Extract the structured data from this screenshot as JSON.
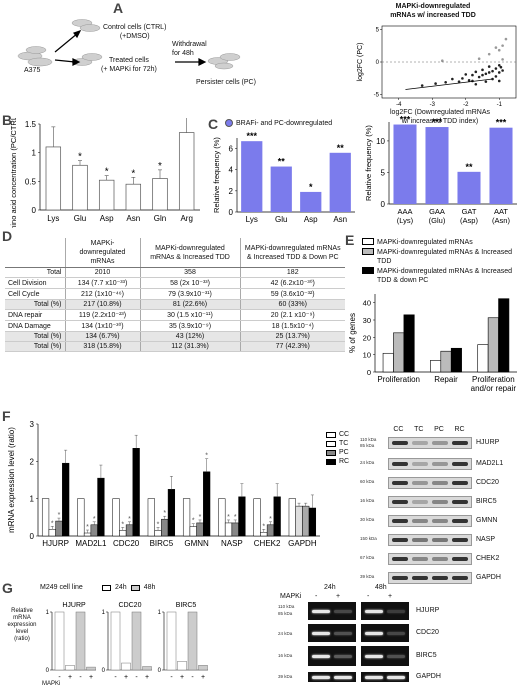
{
  "panel_labels": [
    "A",
    "B",
    "C",
    "D",
    "E",
    "F",
    "G"
  ],
  "panelA": {
    "start": "A375",
    "ctrl": [
      "Control cells (CTRL)",
      "(+DMSO)"
    ],
    "treated": [
      "Treated cells",
      "(+ MAPKi for 72h)"
    ],
    "withdraw": [
      "Withdrawal",
      "for 48h"
    ],
    "pc": "Persister cells (PC)",
    "scatter_title": [
      "MAPKi-downregulated",
      "mRNAs w/ increased TDD"
    ],
    "scatter_ylabel": "log2FC (PC)",
    "scatter_xlabel": [
      "log2FC (Downregulated mRNAs",
      "w/ increased TDD index)"
    ]
  },
  "panelC": {
    "legend": "BRAFi- and PC-downregulated",
    "color": "#7b7bec"
  },
  "panelD": {
    "headers": [
      "",
      "MAPKi-downregulated mRNAs",
      "MAPKi-downregulated mRNAs & Increased TDD",
      "MAPKi-downregulated mRNAs & Increased TDD & Down PC"
    ],
    "rows": [
      [
        "Total",
        "2010",
        "358",
        "182"
      ],
      [
        "Cell Division",
        "134 (7.7 x10⁻³³)",
        "58 (2x 10⁻³³)",
        "42 (6.2x10⁻³⁰)"
      ],
      [
        "Cell Cycle",
        "212 (1x10⁻⁴⁶)",
        "79 (3.9x10⁻³¹)",
        "59 (3.6x10⁻³²)"
      ],
      [
        "Total (%)",
        "217 (10.8%)",
        "81 (22.6%)",
        "60 (33%)"
      ],
      [
        "DNA repair",
        "119 (2.2x10⁻²³)",
        "30 (1.5 x10⁻¹¹)",
        "20 (2.1 x10⁻⁹)"
      ],
      [
        "DNA Damage",
        "134 (1x10⁻³⁰)",
        "35 (3.9x10⁻⁹)",
        "18 (1.5x10⁻⁴)"
      ],
      [
        "Total (%)",
        "134 (6.7%)",
        "43 (12%)",
        "25 (13.7%)"
      ],
      [
        "Total (%)",
        "318 (15.8%)",
        "112 (31.3%)",
        "77 (42.3%)"
      ]
    ]
  },
  "panelE": {
    "legend": [
      "MAPKi-downregulated mRNAs",
      "MAPKi-downregulated mRNAs & Increased TDD",
      "MAPKi-downregulated mRNAs & Increased TDD & down PC"
    ],
    "colors": [
      "#ffffff",
      "#bbbbbb",
      "#000000"
    ]
  },
  "panelF": {
    "legend": [
      "CC",
      "TC",
      "PC",
      "RC"
    ],
    "colors": [
      "#ffffff",
      "#ffffff",
      "#888888",
      "#000000"
    ],
    "blot_cols": [
      "CC",
      "TC",
      "PC",
      "RC"
    ],
    "blot_rows": [
      "HJURP",
      "MAD2L1",
      "CDC20",
      "BIRC5",
      "GMNN",
      "NASP",
      "CHEK2",
      "GAPDH"
    ],
    "blot_kda": [
      "110 kDa",
      "85 kDa",
      "24 kDa",
      "60 kDa",
      "16 kDa",
      "30 kDa",
      "150 kDa",
      "67 kDa",
      "39 kDa"
    ]
  },
  "panelG": {
    "cell_line": "M249 cell line",
    "legend": [
      "24h",
      "48h"
    ],
    "mini_titles": [
      "HJURP",
      "CDC20",
      "BIRC5"
    ],
    "ylabel": [
      "Relative mRNA",
      "expression level",
      "(ratio)"
    ],
    "mapki_label": "MAPKi",
    "signs": [
      "-",
      "+",
      "-",
      "+",
      "-",
      "+",
      "-",
      "+",
      "-",
      "+",
      "-",
      "+"
    ],
    "gel_times": [
      "24h",
      "48h"
    ],
    "gel_mapki": "MAPKi",
    "gel_signs": [
      "-",
      "+",
      "-",
      "+"
    ],
    "gel_rows": [
      "HJURP",
      "CDC20",
      "BIRC5",
      "GAPDH"
    ],
    "gel_kda": [
      "110 kDa",
      "85 kDa",
      "24 kDa",
      "16 kDa",
      "39 kDa"
    ]
  },
  "chart_data": [
    {
      "id": "A-scatter",
      "type": "scatter",
      "title": "MAPKi-downregulated mRNAs w/ increased TDD",
      "xlabel": "log2FC (Downregulated mRNAs w/ increased TDD index)",
      "ylabel": "log2FC (PC)",
      "xlim": [
        -4.5,
        -0.5
      ],
      "ylim": [
        -5.5,
        5.5
      ],
      "xticks": [
        -4,
        -3,
        -2,
        -1
      ],
      "yticks": [
        -5,
        0,
        5
      ],
      "points": [
        {
          "x": -0.9,
          "y": 2.5
        },
        {
          "x": -1.0,
          "y": 1.8
        },
        {
          "x": -1.1,
          "y": 2.2
        },
        {
          "x": -0.8,
          "y": 3.5
        },
        {
          "x": -1.3,
          "y": 1.2
        },
        {
          "x": -1.6,
          "y": 0.5
        },
        {
          "x": -2.7,
          "y": 0.2
        },
        {
          "x": -0.9,
          "y": 0.4
        },
        {
          "x": -1.0,
          "y": -0.5
        },
        {
          "x": -1.1,
          "y": -1.0
        },
        {
          "x": -1.2,
          "y": -1.4
        },
        {
          "x": -1.3,
          "y": -0.7
        },
        {
          "x": -1.4,
          "y": -1.8
        },
        {
          "x": -1.5,
          "y": -1.2
        },
        {
          "x": -1.6,
          "y": -2.3
        },
        {
          "x": -1.7,
          "y": -1.5
        },
        {
          "x": -1.8,
          "y": -2.0
        },
        {
          "x": -1.9,
          "y": -2.8
        },
        {
          "x": -2.0,
          "y": -1.9
        },
        {
          "x": -2.1,
          "y": -2.5
        },
        {
          "x": -2.2,
          "y": -3.0
        },
        {
          "x": -2.4,
          "y": -2.6
        },
        {
          "x": -2.6,
          "y": -3.1
        },
        {
          "x": -2.9,
          "y": -3.3
        },
        {
          "x": -3.3,
          "y": -3.6
        },
        {
          "x": -1.0,
          "y": -1.6
        },
        {
          "x": -1.1,
          "y": -2.2
        },
        {
          "x": -0.9,
          "y": -1.3
        },
        {
          "x": -1.2,
          "y": -2.6
        },
        {
          "x": -1.4,
          "y": -3.0
        },
        {
          "x": -1.5,
          "y": -2.0
        },
        {
          "x": -1.3,
          "y": -1.6
        },
        {
          "x": -1.7,
          "y": -3.4
        },
        {
          "x": -1.8,
          "y": -2.9
        },
        {
          "x": -1.0,
          "y": -2.9
        },
        {
          "x": -0.95,
          "y": -0.8
        }
      ]
    },
    {
      "id": "B",
      "type": "bar",
      "ylabel": "Amino acid concentration (PC/CTRL ratio)",
      "ylim": [
        0,
        1.5
      ],
      "yticks": [
        0,
        0.5,
        1,
        1.5
      ],
      "categories": [
        "Lys",
        "Glu",
        "Asp",
        "Asn",
        "Gln",
        "Arg"
      ],
      "values": [
        1.1,
        0.78,
        0.52,
        0.45,
        0.55,
        1.35
      ],
      "errors": [
        0.35,
        0.08,
        0.08,
        0.12,
        0.15,
        0.45
      ],
      "significance": [
        "",
        "*",
        "*",
        "*",
        "*",
        ""
      ]
    },
    {
      "id": "C-left",
      "type": "bar",
      "ylabel": "Relative frequency (%)",
      "ylim": [
        0,
        7
      ],
      "yticks": [
        0,
        2,
        4,
        6
      ],
      "categories": [
        "Lys",
        "Glu",
        "Asp",
        "Asn"
      ],
      "values": [
        6.7,
        4.3,
        1.9,
        5.6
      ],
      "significance": [
        "***",
        "**",
        "*",
        "**"
      ]
    },
    {
      "id": "C-right",
      "type": "bar",
      "ylabel": "Relative frequency (%)",
      "ylim": [
        0,
        13
      ],
      "yticks": [
        0,
        5,
        10
      ],
      "categories": [
        "AAA (Lys)",
        "GAA (Glu)",
        "GAT (Asp)",
        "AAT (Asn)"
      ],
      "values": [
        12.6,
        12.2,
        5.1,
        12.1
      ],
      "significance": [
        "***",
        "***",
        "**",
        "***"
      ]
    },
    {
      "id": "E",
      "type": "bar",
      "ylabel": "% of genes",
      "ylim": [
        0,
        45
      ],
      "yticks": [
        0,
        10,
        20,
        30,
        40
      ],
      "categories": [
        "Proliferation",
        "Repair",
        "Proliferation and/or repair"
      ],
      "series": [
        {
          "name": "MAPKi-downregulated mRNAs",
          "values": [
            10.8,
            6.7,
            15.8
          ]
        },
        {
          "name": "MAPKi-downregulated mRNAs & Increased TDD",
          "values": [
            22.6,
            12.0,
            31.3
          ]
        },
        {
          "name": "MAPKi-downregulated mRNAs & Increased TDD & down PC",
          "values": [
            33.0,
            13.7,
            42.3
          ]
        }
      ]
    },
    {
      "id": "F",
      "type": "bar",
      "ylabel": "mRNA expression level (ratio)",
      "ylim": [
        0,
        3
      ],
      "yticks": [
        0,
        1,
        2,
        3
      ],
      "categories": [
        "HJURP",
        "MAD2L1",
        "CDC20",
        "BIRC5",
        "GMNN",
        "NASP",
        "CHEK2",
        "GAPDH"
      ],
      "series": [
        {
          "name": "CC",
          "values": [
            1,
            1,
            1,
            1,
            1,
            1,
            1,
            1
          ]
        },
        {
          "name": "TC",
          "values": [
            0.18,
            0.08,
            0.15,
            0.15,
            0.25,
            0.35,
            0.1,
            0.8
          ]
        },
        {
          "name": "PC",
          "values": [
            0.4,
            0.3,
            0.3,
            0.45,
            0.35,
            0.35,
            0.3,
            0.8
          ]
        },
        {
          "name": "RC",
          "values": [
            1.95,
            1.55,
            2.35,
            1.25,
            1.72,
            1.05,
            1.05,
            0.75
          ]
        }
      ],
      "significance": [
        [
          "",
          "*",
          "*",
          ""
        ],
        [
          "",
          "*",
          "*",
          ""
        ],
        [
          "",
          "*",
          "*",
          ""
        ],
        [
          "",
          "*",
          "*",
          ""
        ],
        [
          "",
          "*",
          "*",
          "*"
        ],
        [
          "",
          "*",
          "*",
          ""
        ],
        [
          "",
          "*",
          "*",
          ""
        ],
        [
          "",
          "",
          "",
          ""
        ]
      ]
    },
    {
      "id": "G",
      "type": "bar",
      "ylabel": "Relative mRNA expression level (ratio)",
      "ylim": [
        0,
        1
      ],
      "yticks": [
        0,
        1
      ],
      "groups": [
        "HJURP",
        "CDC20",
        "BIRC5"
      ],
      "categories": [
        "24h -",
        "24h +",
        "48h -",
        "48h +"
      ],
      "series": [
        {
          "name": "HJURP",
          "values": [
            1,
            0.08,
            1,
            0.05
          ]
        },
        {
          "name": "CDC20",
          "values": [
            1,
            0.12,
            1,
            0.06
          ]
        },
        {
          "name": "BIRC5",
          "values": [
            1,
            0.15,
            1,
            0.08
          ]
        }
      ]
    }
  ]
}
